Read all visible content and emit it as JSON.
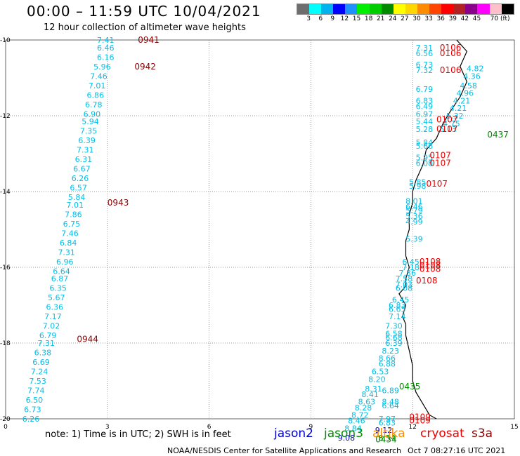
{
  "header": {
    "title": "00:00 – 11:59 UTC 10/04/2021",
    "subtitle": "12 hour collection of altimeter wave heights"
  },
  "colorbar": {
    "colors": [
      "#6e6e6e",
      "#00ffff",
      "#00b2ee",
      "#0000ff",
      "#1e90ff",
      "#00ee00",
      "#00cd00",
      "#008b00",
      "#ffff00",
      "#ffd700",
      "#ff8c00",
      "#ff4500",
      "#ff0000",
      "#b22222",
      "#8b008b",
      "#ff00ff",
      "#ffc0cb",
      "#000000"
    ],
    "labels": [
      "3",
      "6",
      "9",
      "12",
      "15",
      "18",
      "21",
      "24",
      "27",
      "30",
      "33",
      "36",
      "39",
      "42",
      "45",
      "70 (ft)"
    ]
  },
  "map": {
    "x_ticks": [
      "0",
      "3",
      "6",
      "9",
      "12",
      "15"
    ],
    "y_ticks": [
      "-10",
      "-12",
      "-14",
      "-16",
      "-18",
      "-20"
    ],
    "x_values": [
      0,
      3,
      6,
      9,
      12,
      15
    ],
    "y_values": [
      -10,
      -12,
      -14,
      -16,
      -18,
      -20
    ],
    "x_range": [
      0,
      15
    ],
    "y_range": [
      -20,
      -10
    ],
    "grid": "dotted",
    "coastline": [
      [
        13.3,
        -10.0
      ],
      [
        13.6,
        -10.3
      ],
      [
        13.4,
        -10.7
      ],
      [
        13.6,
        -11.1
      ],
      [
        13.4,
        -11.5
      ],
      [
        13.1,
        -11.9
      ],
      [
        12.9,
        -12.2
      ],
      [
        12.7,
        -12.6
      ],
      [
        12.4,
        -12.9
      ],
      [
        12.3,
        -13.3
      ],
      [
        12.1,
        -13.7
      ],
      [
        12.0,
        -14.0
      ],
      [
        12.0,
        -14.3
      ],
      [
        11.9,
        -14.6
      ],
      [
        11.9,
        -15.0
      ],
      [
        11.8,
        -15.3
      ],
      [
        11.8,
        -15.7
      ],
      [
        11.9,
        -16.0
      ],
      [
        11.8,
        -16.3
      ],
      [
        11.8,
        -16.5
      ],
      [
        11.6,
        -16.7
      ],
      [
        11.8,
        -17.0
      ],
      [
        11.7,
        -17.3
      ],
      [
        11.8,
        -17.5
      ],
      [
        11.8,
        -17.8
      ],
      [
        11.9,
        -18.2
      ],
      [
        12.0,
        -18.6
      ],
      [
        12.0,
        -19.0
      ],
      [
        12.1,
        -19.3
      ],
      [
        12.3,
        -19.6
      ],
      [
        12.5,
        -19.9
      ],
      [
        12.7,
        -20.0
      ]
    ]
  },
  "tracks": [
    {
      "color": "#00bfe8",
      "points": [
        {
          "x": 3.2,
          "y": -10.0,
          "v": "7.41"
        },
        {
          "x": 3.2,
          "y": -10.2,
          "v": "6.46"
        },
        {
          "x": 3.2,
          "y": -10.45,
          "v": "6.16"
        },
        {
          "x": 3.1,
          "y": -10.7,
          "v": "5.96"
        },
        {
          "x": 3.0,
          "y": -10.95,
          "v": "7.46"
        },
        {
          "x": 2.95,
          "y": -11.2,
          "v": "7.01"
        },
        {
          "x": 2.9,
          "y": -11.45,
          "v": "6.86"
        },
        {
          "x": 2.85,
          "y": -11.7,
          "v": "6.78"
        },
        {
          "x": 2.8,
          "y": -11.95,
          "v": "6.90"
        },
        {
          "x": 2.75,
          "y": -12.15,
          "v": "5.94"
        },
        {
          "x": 2.7,
          "y": -12.4,
          "v": "7.35"
        },
        {
          "x": 2.65,
          "y": -12.65,
          "v": "6.39"
        },
        {
          "x": 2.6,
          "y": -12.9,
          "v": "7.31"
        },
        {
          "x": 2.55,
          "y": -13.15,
          "v": "6.31"
        },
        {
          "x": 2.5,
          "y": -13.4,
          "v": "6.67"
        },
        {
          "x": 2.45,
          "y": -13.65,
          "v": "6.26"
        },
        {
          "x": 2.4,
          "y": -13.9,
          "v": "6.57"
        },
        {
          "x": 2.35,
          "y": -14.15,
          "v": "5.84"
        },
        {
          "x": 2.3,
          "y": -14.35,
          "v": "7.01"
        },
        {
          "x": 2.25,
          "y": -14.6,
          "v": "7.86"
        },
        {
          "x": 2.2,
          "y": -14.85,
          "v": "6.75"
        },
        {
          "x": 2.15,
          "y": -15.1,
          "v": "7.46"
        },
        {
          "x": 2.1,
          "y": -15.35,
          "v": "6.84"
        },
        {
          "x": 2.05,
          "y": -15.6,
          "v": "7.31"
        },
        {
          "x": 2.0,
          "y": -15.85,
          "v": "6.96"
        },
        {
          "x": 1.9,
          "y": -16.1,
          "v": "6.64"
        },
        {
          "x": 1.85,
          "y": -16.3,
          "v": "6.87"
        },
        {
          "x": 1.8,
          "y": -16.55,
          "v": "6.35"
        },
        {
          "x": 1.75,
          "y": -16.8,
          "v": "5.67"
        },
        {
          "x": 1.7,
          "y": -17.05,
          "v": "6.36"
        },
        {
          "x": 1.65,
          "y": -17.3,
          "v": "7.17"
        },
        {
          "x": 1.6,
          "y": -17.55,
          "v": "7.02"
        },
        {
          "x": 1.5,
          "y": -17.8,
          "v": "6.79"
        },
        {
          "x": 1.45,
          "y": -18.0,
          "v": "7.31"
        },
        {
          "x": 1.35,
          "y": -18.25,
          "v": "6.38"
        },
        {
          "x": 1.3,
          "y": -18.5,
          "v": "6.69"
        },
        {
          "x": 1.25,
          "y": -18.75,
          "v": "7.24"
        },
        {
          "x": 1.2,
          "y": -19.0,
          "v": "7.53"
        },
        {
          "x": 1.15,
          "y": -19.25,
          "v": "7.74"
        },
        {
          "x": 1.1,
          "y": -19.5,
          "v": "6.50"
        },
        {
          "x": 1.05,
          "y": -19.75,
          "v": "6.73"
        },
        {
          "x": 1.0,
          "y": -20.0,
          "v": "6.26"
        }
      ]
    },
    {
      "color": "#00bfe8",
      "points": [
        {
          "x": 12.6,
          "y": -10.2,
          "v": "7.31"
        },
        {
          "x": 12.6,
          "y": -10.35,
          "v": "6.56"
        },
        {
          "x": 12.6,
          "y": -10.65,
          "v": "6.73"
        },
        {
          "x": 12.6,
          "y": -10.8,
          "v": "7.32"
        },
        {
          "x": 12.6,
          "y": -11.3,
          "v": "6.79"
        },
        {
          "x": 12.6,
          "y": -11.6,
          "v": "6.83"
        },
        {
          "x": 12.6,
          "y": -11.75,
          "v": "6.49"
        },
        {
          "x": 12.6,
          "y": -11.95,
          "v": "6.97"
        },
        {
          "x": 12.6,
          "y": -12.15,
          "v": "5.44"
        },
        {
          "x": 12.6,
          "y": -12.35,
          "v": "5.28"
        },
        {
          "x": 12.6,
          "y": -12.7,
          "v": "5.84"
        },
        {
          "x": 12.6,
          "y": -12.8,
          "v": "5.66"
        },
        {
          "x": 12.6,
          "y": -13.1,
          "v": "5.95"
        },
        {
          "x": 12.6,
          "y": -13.25,
          "v": "6.08"
        },
        {
          "x": 12.4,
          "y": -13.75,
          "v": "5.85"
        },
        {
          "x": 12.4,
          "y": -13.85,
          "v": "5.98"
        },
        {
          "x": 12.3,
          "y": -14.25,
          "v": "8.01"
        },
        {
          "x": 12.3,
          "y": -14.4,
          "v": "6.46"
        },
        {
          "x": 12.3,
          "y": -14.5,
          "v": "5.79"
        },
        {
          "x": 12.3,
          "y": -14.65,
          "v": "5.36"
        },
        {
          "x": 12.3,
          "y": -14.8,
          "v": "4.99"
        },
        {
          "x": 12.3,
          "y": -15.25,
          "v": "5.39"
        },
        {
          "x": 12.2,
          "y": -15.85,
          "v": "6.45"
        },
        {
          "x": 12.2,
          "y": -16.0,
          "v": "7.18"
        },
        {
          "x": 12.1,
          "y": -16.15,
          "v": "7.36"
        },
        {
          "x": 12.0,
          "y": -16.3,
          "v": "7.58"
        },
        {
          "x": 12.0,
          "y": -16.45,
          "v": "7.03"
        },
        {
          "x": 12.0,
          "y": -16.55,
          "v": "6.08"
        },
        {
          "x": 11.9,
          "y": -16.85,
          "v": "6.45"
        },
        {
          "x": 11.8,
          "y": -17.0,
          "v": "6.83"
        },
        {
          "x": 11.8,
          "y": -17.1,
          "v": "6.65"
        },
        {
          "x": 11.8,
          "y": -17.3,
          "v": "7.14"
        },
        {
          "x": 11.7,
          "y": -17.55,
          "v": "7.30"
        },
        {
          "x": 11.7,
          "y": -17.75,
          "v": "6.58"
        },
        {
          "x": 11.7,
          "y": -17.85,
          "v": "6.68"
        },
        {
          "x": 11.7,
          "y": -18.0,
          "v": "6.39"
        },
        {
          "x": 11.6,
          "y": -18.2,
          "v": "8.23"
        },
        {
          "x": 11.5,
          "y": -18.4,
          "v": "8.66"
        },
        {
          "x": 11.5,
          "y": -18.55,
          "v": "6.88"
        },
        {
          "x": 11.3,
          "y": -18.75,
          "v": "6.53"
        },
        {
          "x": 11.2,
          "y": -18.95,
          "v": "8.20"
        },
        {
          "x": 11.1,
          "y": -19.2,
          "v": "8.31"
        },
        {
          "x": 11.0,
          "y": -19.35,
          "v": "8.41"
        },
        {
          "x": 10.9,
          "y": -19.55,
          "v": "8.63"
        },
        {
          "x": 10.8,
          "y": -19.7,
          "v": "8.28"
        },
        {
          "x": 10.7,
          "y": -19.9,
          "v": "8.72"
        },
        {
          "x": 10.6,
          "y": -20.05,
          "v": "8.46"
        },
        {
          "x": 10.5,
          "y": -20.25,
          "v": "8.84"
        }
      ]
    },
    {
      "color": "#00bfe8",
      "points": [
        {
          "x": 11.6,
          "y": -19.25,
          "v": "6.89"
        },
        {
          "x": 11.6,
          "y": -19.55,
          "v": "8.48"
        },
        {
          "x": 11.6,
          "y": -19.65,
          "v": "6.64"
        },
        {
          "x": 11.5,
          "y": -20.0,
          "v": "7.97"
        },
        {
          "x": 11.5,
          "y": -20.1,
          "v": "6.83"
        }
      ]
    },
    {
      "color": "#00bfe8",
      "points": [
        {
          "x": 14.1,
          "y": -10.75,
          "v": "4.82"
        },
        {
          "x": 14.0,
          "y": -10.95,
          "v": "4.36"
        },
        {
          "x": 13.9,
          "y": -11.2,
          "v": "4.58"
        },
        {
          "x": 13.8,
          "y": -11.4,
          "v": "4.96"
        },
        {
          "x": 13.7,
          "y": -11.6,
          "v": "4.21"
        },
        {
          "x": 13.6,
          "y": -11.8,
          "v": "4.21"
        },
        {
          "x": 13.5,
          "y": -12.0,
          "v": "5.32"
        },
        {
          "x": 13.4,
          "y": -12.2,
          "v": "4.75"
        },
        {
          "x": 13.3,
          "y": -12.35,
          "v": "5.13"
        }
      ]
    },
    {
      "color": "#0000cd",
      "points": [
        {
          "x": 11.4,
          "y": -20.3,
          "v": "9.12"
        },
        {
          "x": 10.3,
          "y": -20.5,
          "v": "9.08"
        }
      ]
    },
    {
      "color": "#008b00",
      "points": [
        {
          "x": 11.5,
          "y": -20.5,
          "v": "8.54"
        }
      ]
    }
  ],
  "times": [
    {
      "x": 3.9,
      "y": -10.0,
      "v": "0941",
      "color": "#8b0000"
    },
    {
      "x": 3.8,
      "y": -10.7,
      "v": "0942",
      "color": "#8b0000"
    },
    {
      "x": 3.0,
      "y": -14.3,
      "v": "0943",
      "color": "#8b0000"
    },
    {
      "x": 2.1,
      "y": -17.9,
      "v": "0944",
      "color": "#8b0000"
    },
    {
      "x": 12.8,
      "y": -10.2,
      "v": "0106",
      "color": "#ee0000"
    },
    {
      "x": 12.8,
      "y": -10.35,
      "v": "0106",
      "color": "#ee0000"
    },
    {
      "x": 12.8,
      "y": -10.8,
      "v": "0106",
      "color": "#ee0000"
    },
    {
      "x": 12.7,
      "y": -12.1,
      "v": "0107",
      "color": "#ee0000"
    },
    {
      "x": 12.7,
      "y": -12.35,
      "v": "0107",
      "color": "#ee0000"
    },
    {
      "x": 12.5,
      "y": -13.05,
      "v": "0107",
      "color": "#ee0000"
    },
    {
      "x": 12.5,
      "y": -13.25,
      "v": "0107",
      "color": "#ee0000"
    },
    {
      "x": 12.4,
      "y": -13.8,
      "v": "0107",
      "color": "#ee0000"
    },
    {
      "x": 12.2,
      "y": -15.85,
      "v": "0108",
      "color": "#ee0000"
    },
    {
      "x": 12.2,
      "y": -15.95,
      "v": "0108",
      "color": "#ee0000"
    },
    {
      "x": 12.2,
      "y": -16.05,
      "v": "0108",
      "color": "#ee0000"
    },
    {
      "x": 12.1,
      "y": -16.35,
      "v": "0108",
      "color": "#ee0000"
    },
    {
      "x": 11.9,
      "y": -19.95,
      "v": "0109",
      "color": "#ee0000"
    },
    {
      "x": 11.9,
      "y": -20.05,
      "v": "0109",
      "color": "#ee0000"
    },
    {
      "x": 14.2,
      "y": -12.5,
      "v": "0437",
      "color": "#008b00"
    },
    {
      "x": 11.6,
      "y": -19.15,
      "v": "0435",
      "color": "#008b00"
    },
    {
      "x": 10.9,
      "y": -20.55,
      "v": "0434",
      "color": "#008b00"
    }
  ],
  "footer": {
    "note": "note:  1) Time is in UTC;  2) SWH is in feet",
    "legend": [
      {
        "label": "jason2",
        "color": "#0000cd"
      },
      {
        "label": "jason3",
        "color": "#008b00"
      },
      {
        "label": "altika",
        "color": "#ff8c00"
      },
      {
        "label": "cryosat",
        "color": "#ee0000"
      },
      {
        "label": "s3a",
        "color": "#8b0000"
      }
    ],
    "credit": "NOAA/NESDIS Center for Satellite Applications and Research",
    "timestamp": "Oct  7 08:27:16 UTC 2021"
  }
}
